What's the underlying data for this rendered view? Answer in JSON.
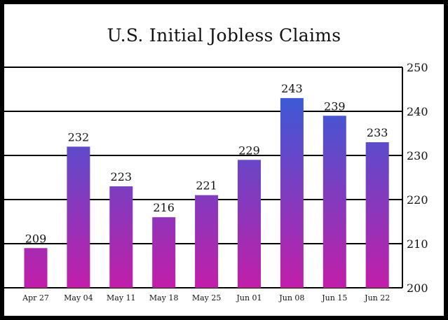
{
  "chart_data": {
    "type": "bar",
    "title": "U.S. Initial Jobless Claims",
    "xlabel": "",
    "ylabel": "",
    "categories": [
      "Apr 27",
      "May 04",
      "May 11",
      "May 18",
      "May 25",
      "Jun 01",
      "Jun 08",
      "Jun 15",
      "Jun 22"
    ],
    "values": [
      209,
      232,
      223,
      216,
      221,
      229,
      243,
      239,
      233
    ],
    "data_labels": [
      "209",
      "232",
      "223",
      "216",
      "221",
      "229",
      "243",
      "239",
      "233"
    ],
    "ylim": [
      200,
      250
    ],
    "yticks": [
      "200",
      "210",
      "220",
      "230",
      "240",
      "250"
    ],
    "y_axis_position": "right",
    "grid": true,
    "legend": "none",
    "colors": {
      "bar_top": "#3a5ad6",
      "bar_bottom": "#c21ea8",
      "grid": "#000000",
      "background": "#ffffff",
      "border": "#000000"
    }
  }
}
